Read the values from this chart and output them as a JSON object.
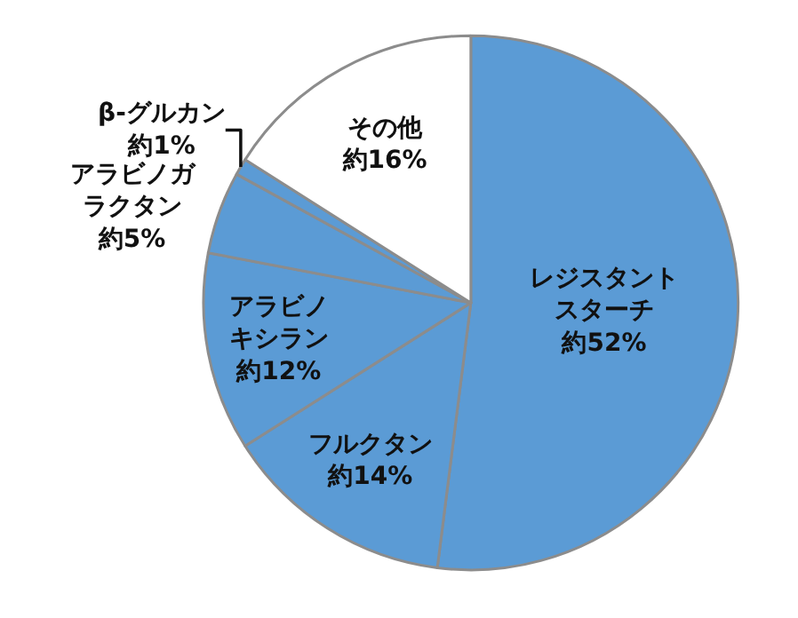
{
  "chart_data": {
    "type": "pie",
    "categories": [
      "レジスタントスターチ",
      "フルクタン",
      "アラビノキシラン",
      "アラビノガラクタン",
      "β-グルカン",
      "その他"
    ],
    "values": [
      52,
      14,
      12,
      5,
      1,
      16
    ],
    "colors": [
      "#5b9bd5",
      "#5b9bd5",
      "#5b9bd5",
      "#5b9bd5",
      "#5b9bd5",
      "#ffffff"
    ],
    "value_labels": [
      "約52%",
      "約14%",
      "約12%",
      "約5%",
      "約1%",
      "約16%"
    ],
    "legend": false
  }
}
